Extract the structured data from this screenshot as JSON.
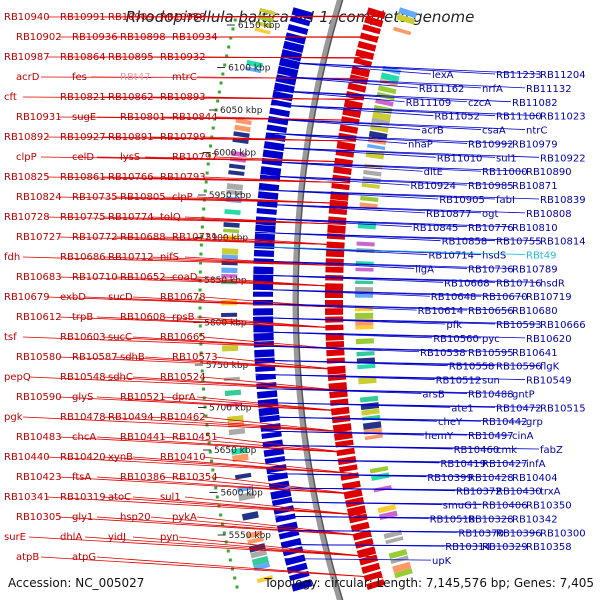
{
  "title": "Rhodopirellula baltica SH 1, complete genome",
  "footer": {
    "accession": "Accession: NC_005027",
    "summary": "Topology: circular; Length: 7,145,576 bp; Genes: 7,405"
  },
  "colors": {
    "forward": "#dd0000",
    "reverse": "#0000cc",
    "label_left": "#cc0000",
    "label_right": "#0000aa",
    "backbone": "#888888",
    "rna_pink": "#e0a0b0",
    "rna_cyan": "#22bbdd",
    "tick_dots": "#33aa33"
  },
  "scale_ticks": [
    "6150 kbp",
    "6100 kbp",
    "6050 kbp",
    "6000 kbp",
    "5950 kbp",
    "5900 kbp",
    "5850 kbp",
    "5800 kbp",
    "5750 kbp",
    "5700 kbp",
    "5650 kbp",
    "5600 kbp",
    "5550 kbp"
  ],
  "left_labels": [
    "RB10940",
    "RB10991",
    "RB10909",
    "RB10958",
    "RB10902",
    "RB10936",
    "RB10898",
    "RB10934",
    "RB10987",
    "RB10864",
    "RB10895",
    "RB10932",
    "acrD",
    "fes",
    "RBt47",
    "mtrC",
    "cft",
    "RB10821",
    "RB10862",
    "RB10893",
    "RB10931",
    "sugE",
    "RB10801",
    "RB10844",
    "RB10892",
    "RB10927",
    "RB10891",
    "RB10799",
    "clpP",
    "celD",
    "lysS",
    "RB10797",
    "RB10825",
    "RB10861",
    "RB10766",
    "RB10793",
    "RB10824",
    "RB10735",
    "RB10805",
    "clpP",
    "RB10728",
    "RB10775",
    "RB10774",
    "tolQ",
    "RB10727",
    "RB10772",
    "RB10688",
    "RB10721",
    "fdh",
    "RB10686",
    "RB10712",
    "nifS",
    "RB10683",
    "RB10710",
    "RB10652",
    "coaD",
    "RB10679",
    "exbD",
    "sucD",
    "RB10678",
    "RB10612",
    "trpB",
    "RB10608",
    "rpsB",
    "tsf",
    "RB10603",
    "sucC",
    "RB10665",
    "RB10580",
    "RB10587",
    "sdhB",
    "RB10573",
    "pepQ",
    "RB10548",
    "sdhC",
    "RB10524",
    "RB10590",
    "glyS",
    "RB10521",
    "dprA",
    "pgk",
    "RB10478",
    "RB10494",
    "RB10462",
    "RB10483",
    "chcA",
    "RB10441",
    "RB10451",
    "RB10440",
    "RB10420",
    "xynB",
    "RB10410",
    "RB10423",
    "ftsA",
    "RB10386",
    "RB10354",
    "RB10341",
    "RB10319",
    "atoC",
    "sul1",
    "RB10305",
    "gly1",
    "hsp20",
    "pykA",
    "surE",
    "dhlA",
    "yidJ",
    "pyn",
    "atpB",
    "atpG"
  ],
  "right_labels": [
    "lexA",
    "RB11233",
    "RB11204",
    "RB11162",
    "nrfA",
    "RB11132",
    "RB11109",
    "czcA",
    "RB11082",
    "RB11052",
    "RB11100",
    "RB11023",
    "acrB",
    "csaA",
    "ntrC",
    "nhaP",
    "RB10992",
    "RB10979",
    "RB11010",
    "sul1",
    "RB10922",
    "dltE",
    "RB11000",
    "RB10890",
    "RB10924",
    "RB10985",
    "RB10871",
    "RB10905",
    "fabI",
    "RB10839",
    "RB10877",
    "ogt",
    "RB10808",
    "RB10845",
    "RB10776",
    "RB10810",
    "RB10858",
    "RB10755",
    "RB10814",
    "RB10714",
    "hsdS",
    "RBt49",
    "ligA",
    "RB10736",
    "RB10789",
    "RB10668",
    "RB10716",
    "hsdR",
    "RB10648",
    "RB10670",
    "RB10719",
    "RB10614",
    "RB10656",
    "RB10680",
    "pfk",
    "RB10593",
    "RB10666",
    "RB10560",
    "pyc",
    "RB10620",
    "RB10538",
    "RB10595",
    "RB10641",
    "RB10558",
    "RB10596",
    "flgK",
    "RB10512",
    "sun",
    "RB10549",
    "arsB",
    "RB10488",
    "gntP",
    "ate1",
    "RB10472",
    "RB10515",
    "cheY",
    "RB10442",
    "grp",
    "hemY",
    "RB10497",
    "cinA",
    "RB10460",
    "cmk",
    "fabZ",
    "RB10419",
    "RB10427",
    "infA",
    "RB10399",
    "RB10428",
    "RB10404",
    "RB10372",
    "RB10430",
    "trxA",
    "smuG1",
    "RB10406",
    "RB10350",
    "RB10518",
    "RB10328",
    "RB10342",
    "RB10370",
    "RB10396",
    "RB10300",
    "RB10314",
    "RB10329",
    "RB10358",
    "upK"
  ]
}
